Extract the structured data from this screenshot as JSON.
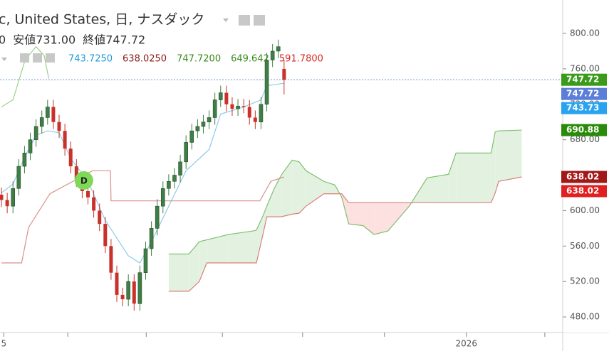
{
  "chart_data": {
    "type": "candlestick",
    "title": "c, United States, 日, ナスダック",
    "ohlc_text": [
      "0",
      "安値731.00",
      "終値747.72"
    ],
    "indicator_values": [
      {
        "label": "743.7250",
        "color": "#1e9bd7"
      },
      {
        "label": "638.0250",
        "color": "#8b1a1a"
      },
      {
        "label": "747.7200",
        "color": "#3a8a1a"
      },
      {
        "label": "649.642",
        "color": "#3a8a1a"
      },
      {
        "label": "591.7800",
        "color": "#d62a2a"
      }
    ],
    "x": [
      0,
      1,
      2,
      3,
      4,
      5,
      6,
      7,
      8,
      9,
      10,
      11,
      12,
      13,
      14,
      15,
      16,
      17,
      18,
      19,
      20,
      21,
      22,
      23,
      24,
      25,
      26,
      27,
      28,
      29,
      30,
      31,
      32,
      33,
      34,
      35,
      36,
      37,
      38,
      39,
      40,
      41,
      42,
      43,
      44,
      45,
      46,
      47,
      48,
      49
    ],
    "open": [
      618,
      612,
      605,
      625,
      650,
      665,
      680,
      695,
      705,
      717,
      700,
      690,
      670,
      650,
      635,
      622,
      615,
      600,
      585,
      560,
      530,
      505,
      500,
      520,
      495,
      530,
      557,
      580,
      605,
      625,
      633,
      640,
      655,
      677,
      690,
      695,
      700,
      705,
      725,
      733,
      720,
      715,
      718,
      717,
      705,
      700,
      720,
      770,
      780,
      760
    ],
    "high": [
      626,
      620,
      633,
      658,
      673,
      688,
      703,
      713,
      725,
      725,
      708,
      698,
      678,
      658,
      643,
      630,
      623,
      608,
      593,
      568,
      538,
      513,
      528,
      528,
      538,
      565,
      588,
      613,
      633,
      641,
      648,
      663,
      685,
      698,
      703,
      708,
      713,
      733,
      741,
      741,
      728,
      726,
      726,
      725,
      713,
      728,
      778,
      788,
      793,
      770
    ],
    "low": [
      604,
      597,
      597,
      617,
      642,
      657,
      672,
      687,
      697,
      692,
      682,
      662,
      642,
      627,
      614,
      607,
      592,
      577,
      552,
      522,
      497,
      492,
      492,
      487,
      487,
      522,
      549,
      572,
      597,
      617,
      625,
      632,
      647,
      669,
      682,
      687,
      692,
      697,
      717,
      712,
      707,
      707,
      710,
      697,
      692,
      692,
      712,
      762,
      772,
      731
    ],
    "close": [
      612,
      605,
      625,
      650,
      665,
      680,
      695,
      705,
      717,
      700,
      690,
      670,
      650,
      635,
      622,
      615,
      600,
      585,
      560,
      530,
      505,
      500,
      520,
      495,
      530,
      557,
      580,
      605,
      625,
      633,
      640,
      655,
      677,
      690,
      695,
      700,
      705,
      725,
      733,
      720,
      715,
      718,
      717,
      705,
      700,
      720,
      770,
      780,
      785,
      747.72
    ],
    "up_color": "#3d7f45",
    "down_color": "#c8322a",
    "lines": [
      {
        "color": "#8fcbe8",
        "x": [
          0,
          2,
          4,
          6,
          8,
          10,
          12,
          15,
          18,
          22,
          24,
          26,
          29,
          32,
          36,
          38,
          42,
          45,
          46,
          49
        ],
        "values": [
          620,
          630,
          660,
          685,
          690,
          688,
          659,
          633,
          589,
          549,
          541,
          565,
          605,
          645,
          669,
          709,
          717,
          725,
          741,
          743.725
        ]
      },
      {
        "color": "#d9918a",
        "x": [
          0,
          3.5,
          4.7,
          8.4,
          15.8,
          18.9,
          19,
          44.8,
          46.7,
          49
        ],
        "values": [
          541,
          541,
          581,
          619,
          645,
          645,
          611,
          611,
          633,
          638.025
        ]
      },
      {
        "color": "#9fcf8f",
        "x": [
          0,
          2,
          4.1,
          6,
          7.4,
          8.2
        ],
        "values": [
          717,
          725,
          770,
          785,
          775,
          749
        ]
      },
      {
        "color": "#7fbf6f",
        "x": [
          29.0,
          32.5,
          34.3,
          35.6,
          39.3,
          43.6,
          44.2,
          45.4,
          46.0,
          47.3,
          48.5,
          50.4,
          51.6,
          52.8,
          55.9,
          57.8,
          59.0,
          60.2,
          62.7,
          64.6,
          67.0,
          70.7,
          73.8,
          77.5,
          78.8,
          84.9,
          85.6,
          86.2,
          90.2
        ],
        "values": [
          551,
          551,
          565,
          567,
          573,
          577,
          578,
          595,
          605,
          625,
          640,
          657,
          655,
          645,
          633,
          629,
          615,
          585,
          583,
          573,
          577,
          605,
          637,
          641,
          665,
          665,
          689,
          690,
          690.88
        ]
      },
      {
        "color": "#d9807a",
        "x": [
          29.0,
          32.5,
          34.3,
          35.6,
          39.3,
          43.6,
          44.2,
          45.4,
          46.0,
          47.3,
          48.5,
          50.4,
          51.6,
          52.8,
          55.9,
          57.8,
          59.0,
          60.2,
          62.7,
          64.6,
          67.0,
          70.7,
          73.8,
          77.5,
          78.8,
          84.9,
          85.6,
          86.2,
          90.2
        ],
        "values": [
          509,
          509,
          520,
          541,
          541,
          541,
          541,
          575,
          593,
          593,
          593,
          596,
          597,
          605,
          619,
          619,
          619,
          609,
          609,
          609,
          609,
          609,
          609,
          609,
          609,
          609,
          620,
          633,
          638.02
        ]
      }
    ],
    "cloud": {
      "a": 3,
      "b": 4,
      "up_color": "#e3f2e0",
      "down_color": "#fde0e0"
    },
    "last_price": 747.72,
    "annotation": {
      "text": "D",
      "x": 14.3,
      "y": 634,
      "color": "#7ed957"
    },
    "ylim": [
      462.4,
      837.7
    ],
    "yticks": [
      {
        "value": 480,
        "label": "480.00"
      },
      {
        "value": 520,
        "label": "520.00"
      },
      {
        "value": 560,
        "label": "560.00"
      },
      {
        "value": 600,
        "label": "600.00"
      },
      {
        "value": 640,
        "label": "640.00"
      },
      {
        "value": 680,
        "label": "680.00"
      },
      {
        "value": 720,
        "label": "720.00"
      },
      {
        "value": 760,
        "label": "760.00"
      },
      {
        "value": 800,
        "label": "800.00"
      }
    ],
    "xlim": [
      -0.25,
      97.3
    ],
    "xticks": [
      {
        "value": 0.4,
        "label": "5"
      },
      {
        "value": 11.5,
        "label": null
      },
      {
        "value": 25.1,
        "label": null
      },
      {
        "value": 38.3,
        "label": null
      },
      {
        "value": 52.2,
        "label": null
      },
      {
        "value": 66.4,
        "label": null
      },
      {
        "value": 80.6,
        "label": "2026"
      },
      {
        "value": 94.2,
        "label": null
      }
    ],
    "price_labels": [
      {
        "value": 747.72,
        "color": "#3a9a1a"
      },
      {
        "value": 747.72,
        "color": "#5b7fd8"
      },
      {
        "value": 743.73,
        "color": "#29a3f0"
      },
      {
        "value": 690.88,
        "color": "#2a8a0a"
      },
      {
        "value": 638.02,
        "color": "#a01818"
      },
      {
        "value": 638.02,
        "color": "#e02020"
      }
    ]
  }
}
